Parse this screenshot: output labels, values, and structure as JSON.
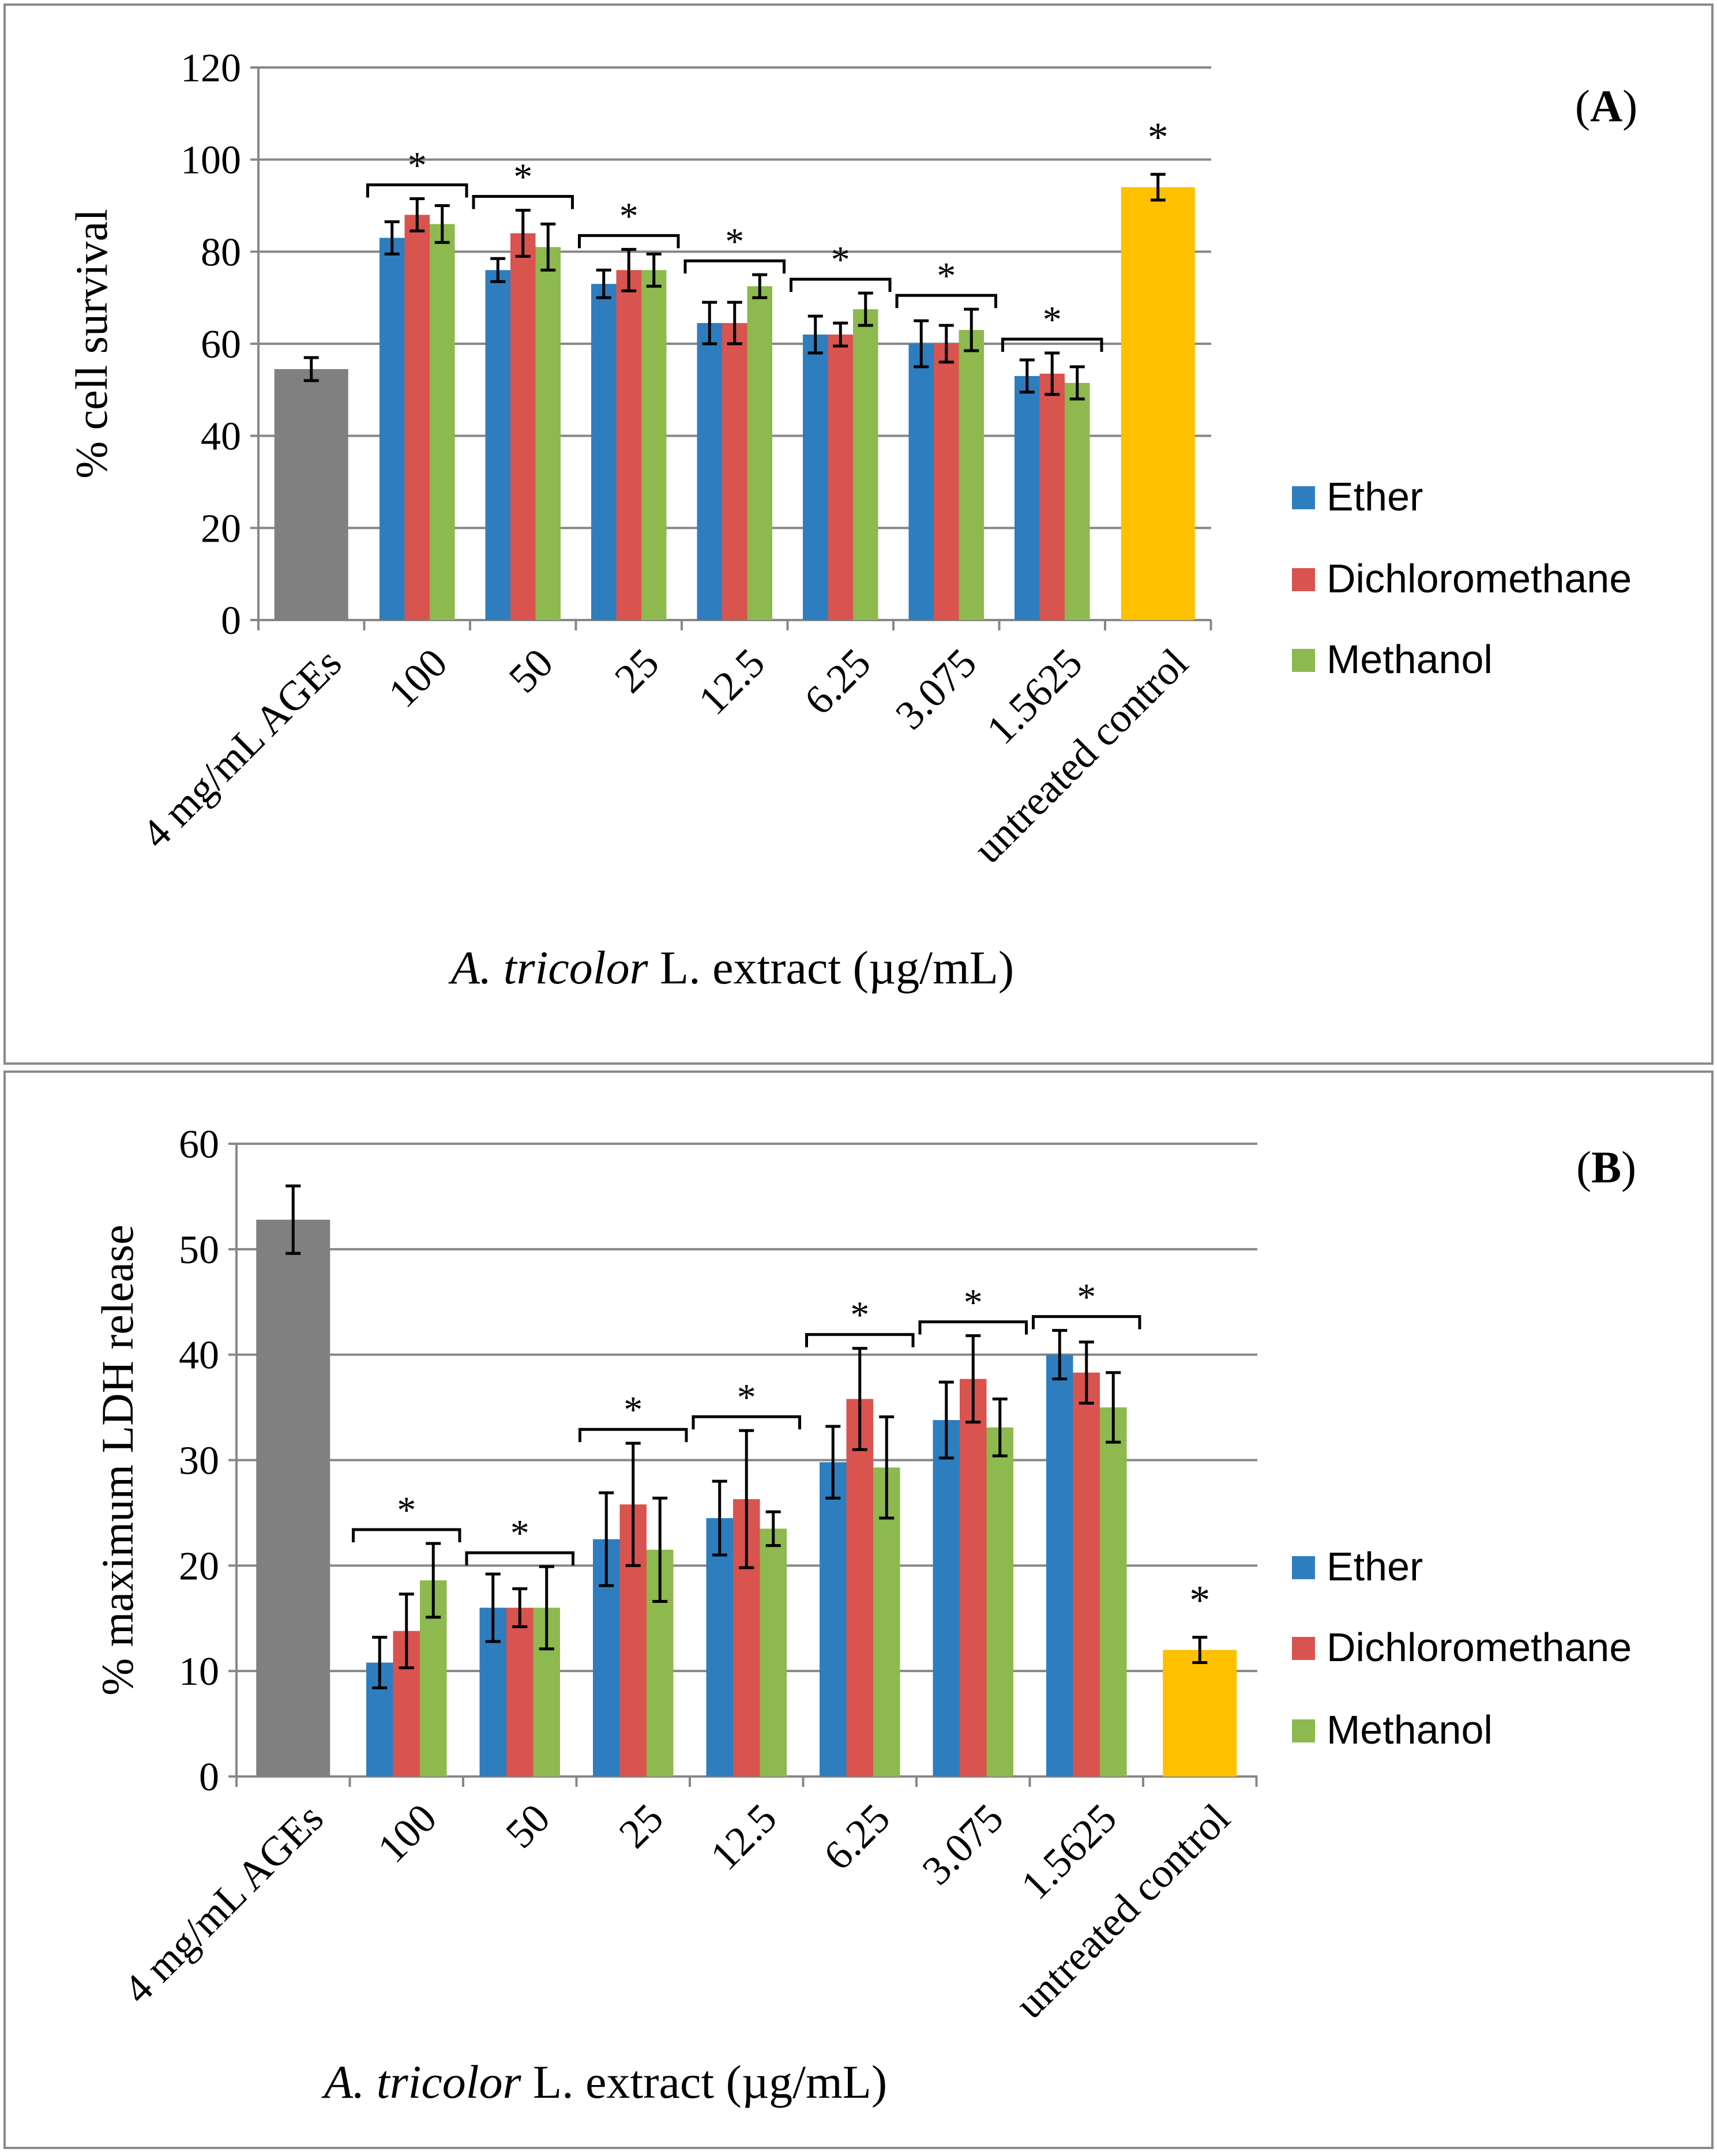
{
  "colors": {
    "ether": "#2e7ebf",
    "dichloromethane": "#d9534f",
    "methanol": "#8db94e",
    "ages": "#808080",
    "control": "#ffc000",
    "grid": "#878787",
    "frame": "#8a8a8a"
  },
  "chart_data": [
    {
      "type": "bar",
      "panel_label": "A",
      "title": "",
      "ylabel": "% cell survival",
      "xlabel_italic": "A. tricolor",
      "xlabel_rest": " L. extract (µg/mL)",
      "ylim": [
        0,
        120
      ],
      "yticks": [
        0,
        20,
        40,
        60,
        80,
        100,
        120
      ],
      "grid": true,
      "legend": [
        "Ether",
        "Dichloromethane",
        "Methanol"
      ],
      "legend_position": "right",
      "categories": [
        "4 mg/mL AGEs",
        "100",
        "50",
        "25",
        "12.5",
        "6.25",
        "3.075",
        "1.5625",
        "untreated control"
      ],
      "single_bars": [
        {
          "category": "4 mg/mL AGEs",
          "value": 54.5,
          "error": 2.5,
          "color_key": "ages",
          "star": false
        },
        {
          "category": "untreated control",
          "value": 94,
          "error": 2.8,
          "color_key": "control",
          "star": true
        }
      ],
      "series": [
        {
          "name": "Ether",
          "values": [
            null,
            83,
            76,
            73,
            64.5,
            62,
            60,
            53,
            null
          ],
          "errors": [
            null,
            3.5,
            2.5,
            3,
            4.5,
            4,
            5,
            3.5,
            null
          ]
        },
        {
          "name": "Dichloromethane",
          "values": [
            null,
            88,
            84,
            76,
            64.5,
            62,
            60,
            53.5,
            null
          ],
          "errors": [
            null,
            3.5,
            5,
            4.5,
            4.5,
            2.5,
            4,
            4.5,
            null
          ]
        },
        {
          "name": "Methanol",
          "values": [
            null,
            86,
            81,
            76,
            72.5,
            67.5,
            63,
            51.5,
            null
          ],
          "errors": [
            null,
            4,
            5,
            3.5,
            2.5,
            3.5,
            4.5,
            3.5,
            null
          ]
        }
      ],
      "significance_marker": "*"
    },
    {
      "type": "bar",
      "panel_label": "B",
      "title": "",
      "ylabel": "% maximum LDH release",
      "xlabel_italic": "A. tricolor",
      "xlabel_rest": " L. extract (µg/mL)",
      "ylim": [
        0,
        60
      ],
      "yticks": [
        0,
        10,
        20,
        30,
        40,
        50,
        60
      ],
      "grid": true,
      "legend": [
        "Ether",
        "Dichloromethane",
        "Methanol"
      ],
      "legend_position": "right",
      "categories": [
        "4 mg/mL AGEs",
        "100",
        "50",
        "25",
        "12.5",
        "6.25",
        "3.075",
        "1.5625",
        "untreated control"
      ],
      "single_bars": [
        {
          "category": "4 mg/mL AGEs",
          "value": 52.8,
          "error": 3.2,
          "color_key": "ages",
          "star": false
        },
        {
          "category": "untreated control",
          "value": 12,
          "error": 1.2,
          "color_key": "control",
          "star": true
        }
      ],
      "series": [
        {
          "name": "Ether",
          "values": [
            null,
            10.8,
            16,
            22.5,
            24.5,
            29.8,
            33.8,
            40,
            null
          ],
          "errors": [
            null,
            2.4,
            3.2,
            4.4,
            3.5,
            3.4,
            3.6,
            2.3,
            null
          ]
        },
        {
          "name": "Dichloromethane",
          "values": [
            null,
            13.8,
            16,
            25.8,
            26.3,
            35.8,
            37.7,
            38.3,
            null
          ],
          "errors": [
            null,
            3.5,
            1.8,
            5.8,
            6.5,
            4.8,
            4.1,
            2.9,
            null
          ]
        },
        {
          "name": "Methanol",
          "values": [
            null,
            18.6,
            16,
            21.5,
            23.5,
            29.3,
            33.1,
            35,
            null
          ],
          "errors": [
            null,
            3.5,
            3.9,
            4.9,
            1.6,
            4.8,
            2.7,
            3.3,
            null
          ]
        }
      ],
      "significance_marker": "*"
    }
  ]
}
